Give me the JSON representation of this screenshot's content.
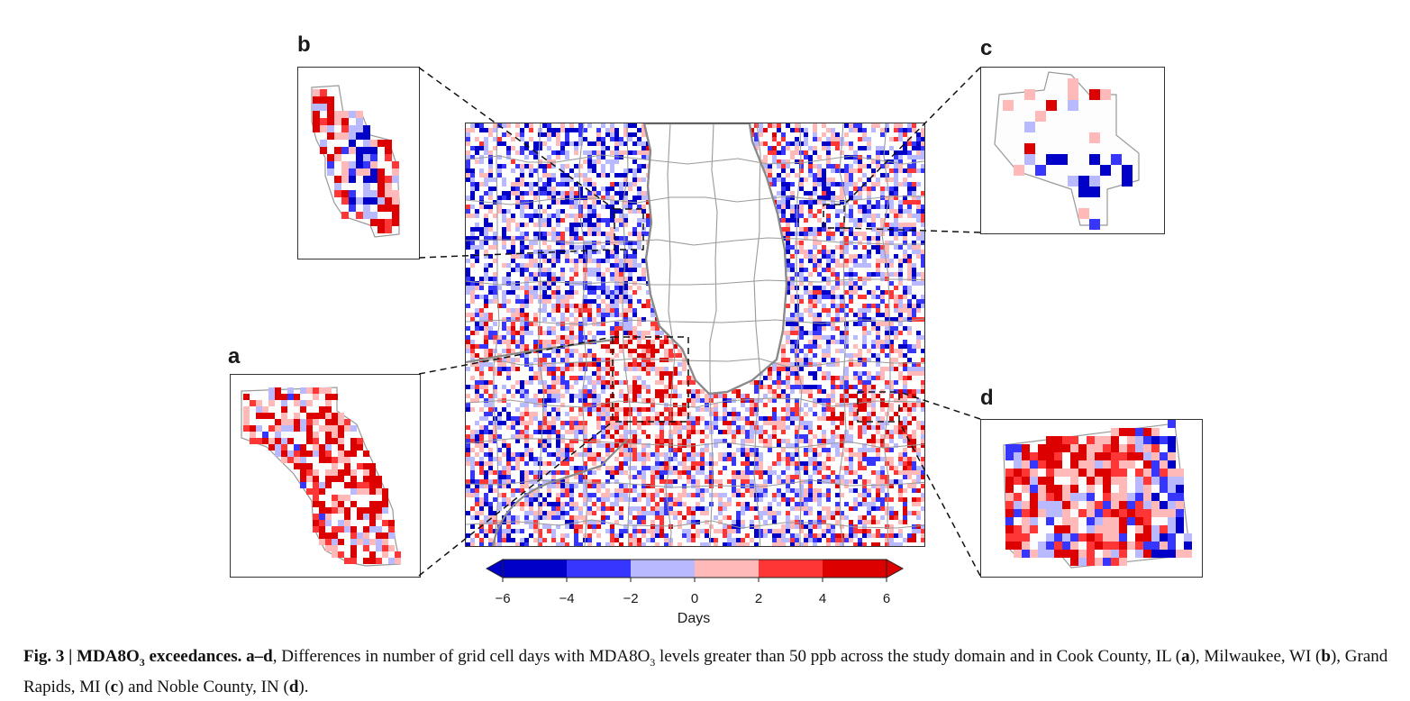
{
  "panels": {
    "a": "a",
    "b": "b",
    "c": "c",
    "d": "d"
  },
  "colorbar": {
    "ticks": [
      "−6",
      "−4",
      "−2",
      "0",
      "2",
      "4",
      "6"
    ],
    "title": "Days",
    "colors": [
      "#0000c8",
      "#3636ff",
      "#b9b9ff",
      "#ffb9b9",
      "#ff3636",
      "#dc0000"
    ]
  },
  "caption": {
    "fig_label": "Fig. 3 | MDA8O",
    "fig_sub": "3",
    "fig_title_rest": " exceedances. a–d",
    "text_1": ", Differences in number of grid cell days with MDA8O",
    "text_sub": "3",
    "text_2": " levels greater than 50 ppb across the study domain and in Cook County, IL (",
    "ref_a": "a",
    "text_3": "), Milwaukee, WI (",
    "ref_b": "b",
    "text_4": "), Grand Rapids, MI (",
    "ref_c": "c",
    "text_5": ") and Noble County, IN (",
    "ref_d": "d",
    "text_6": ")."
  }
}
